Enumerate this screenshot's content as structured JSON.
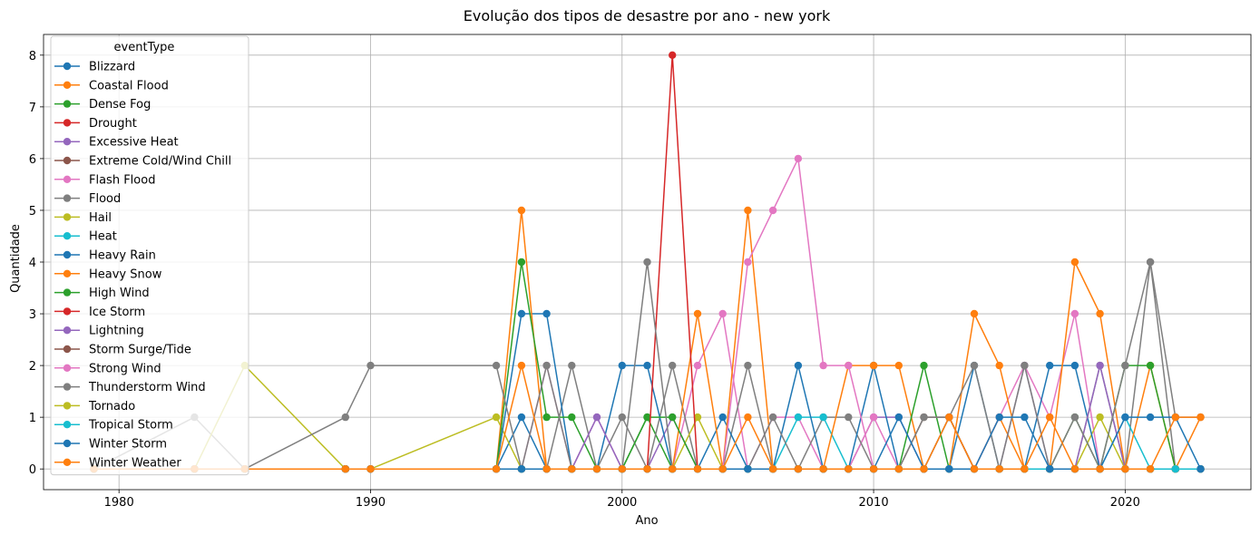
{
  "chart_data": {
    "type": "line",
    "title": "Evolução dos tipos de desastre por ano - new york",
    "xlabel": "Ano",
    "ylabel": "Quantidade",
    "xlim": [
      1977,
      2025
    ],
    "ylim": [
      -0.4,
      8.4
    ],
    "xticks": [
      1980,
      1990,
      2000,
      2010,
      2020
    ],
    "yticks": [
      0,
      1,
      2,
      3,
      4,
      5,
      6,
      7,
      8
    ],
    "grid": true,
    "legend": {
      "title": "eventType",
      "placement": "upper-left"
    },
    "x": [
      1979,
      1983,
      1985,
      1989,
      1990,
      1995,
      1996,
      1997,
      1998,
      1999,
      2000,
      2001,
      2002,
      2003,
      2004,
      2005,
      2006,
      2007,
      2008,
      2009,
      2010,
      2011,
      2012,
      2013,
      2014,
      2015,
      2016,
      2017,
      2018,
      2019,
      2020,
      2021,
      2022,
      2023
    ],
    "series": [
      {
        "name": "Blizzard",
        "color": "#1f77b4",
        "values": [
          0,
          0,
          0,
          0,
          0,
          0,
          1,
          0,
          0,
          0,
          0,
          0,
          0,
          0,
          0,
          0,
          0,
          0,
          0,
          0,
          0,
          0,
          0,
          0,
          0,
          0,
          0,
          0,
          0,
          0,
          0,
          0,
          0,
          0
        ]
      },
      {
        "name": "Coastal Flood",
        "color": "#ff7f0e",
        "values": [
          0,
          0,
          0,
          0,
          0,
          0,
          0,
          0,
          0,
          0,
          0,
          0,
          0,
          0,
          0,
          0,
          0,
          0,
          0,
          0,
          0,
          0,
          0,
          0,
          0,
          1,
          0,
          0,
          0,
          0,
          0,
          0,
          0,
          0
        ]
      },
      {
        "name": "Dense Fog",
        "color": "#2ca02c",
        "values": [
          0,
          0,
          0,
          0,
          0,
          0,
          0,
          0,
          0,
          0,
          0,
          1,
          0,
          0,
          0,
          0,
          0,
          0,
          0,
          0,
          0,
          0,
          0,
          1,
          0,
          0,
          0,
          0,
          0,
          0,
          0,
          0,
          0,
          0
        ]
      },
      {
        "name": "Drought",
        "color": "#d62728",
        "values": [
          0,
          0,
          0,
          0,
          0,
          0,
          0,
          0,
          0,
          0,
          0,
          0,
          0,
          0,
          0,
          0,
          0,
          0,
          0,
          0,
          0,
          0,
          0,
          0,
          0,
          0,
          0,
          0,
          0,
          0,
          0,
          0,
          0,
          0
        ]
      },
      {
        "name": "Excessive Heat",
        "color": "#9467bd",
        "values": [
          0,
          0,
          0,
          0,
          0,
          0,
          0,
          0,
          0,
          0,
          0,
          0,
          1,
          0,
          0,
          0,
          0,
          0,
          0,
          0,
          1,
          1,
          0,
          1,
          0,
          0,
          0,
          0,
          0,
          0,
          0,
          0,
          0,
          0
        ]
      },
      {
        "name": "Extreme Cold/Wind Chill",
        "color": "#8c564b",
        "values": [
          0,
          0,
          0,
          0,
          0,
          0,
          0,
          0,
          0,
          0,
          0,
          0,
          0,
          0,
          0,
          0,
          0,
          0,
          0,
          0,
          0,
          0,
          0,
          0,
          0,
          0,
          0,
          0,
          0,
          0,
          0,
          0,
          0,
          0
        ]
      },
      {
        "name": "Flash Flood",
        "color": "#e377c2",
        "values": [
          0,
          0,
          0,
          0,
          0,
          0,
          0,
          2,
          0,
          1,
          0,
          0,
          0,
          2,
          3,
          0,
          1,
          1,
          0,
          0,
          1,
          0,
          0,
          0,
          0,
          1,
          2,
          1,
          3,
          0,
          0,
          0,
          0,
          0
        ]
      },
      {
        "name": "Flood",
        "color": "#7f7f7f",
        "values": [
          0,
          1,
          0,
          0,
          0,
          0,
          0,
          0,
          2,
          0,
          1,
          0,
          2,
          0,
          0,
          2,
          0,
          0,
          1,
          1,
          0,
          0,
          0,
          0,
          0,
          0,
          0,
          0,
          0,
          2,
          0,
          4,
          0,
          0
        ]
      },
      {
        "name": "Hail",
        "color": "#bcbd22",
        "values": [
          0,
          0,
          2,
          0,
          0,
          1,
          0,
          0,
          0,
          0,
          0,
          0,
          0,
          1,
          0,
          0,
          0,
          0,
          0,
          0,
          0,
          0,
          0,
          0,
          0,
          0,
          0,
          0,
          0,
          1,
          0,
          0,
          0,
          0
        ]
      },
      {
        "name": "Heat",
        "color": "#17becf",
        "values": [
          0,
          0,
          0,
          0,
          0,
          0,
          0,
          0,
          0,
          0,
          0,
          0,
          0,
          0,
          0,
          0,
          0,
          1,
          1,
          0,
          0,
          0,
          0,
          0,
          0,
          0,
          0,
          0,
          0,
          0,
          1,
          0,
          0,
          0
        ]
      },
      {
        "name": "Heavy Rain",
        "color": "#1f77b4",
        "values": [
          0,
          0,
          0,
          0,
          0,
          0,
          3,
          3,
          0,
          0,
          2,
          2,
          0,
          0,
          1,
          0,
          0,
          2,
          0,
          0,
          2,
          0,
          0,
          0,
          2,
          0,
          0,
          2,
          2,
          0,
          0,
          0,
          0,
          0
        ]
      },
      {
        "name": "Heavy Snow",
        "color": "#ff7f0e",
        "values": [
          0,
          0,
          0,
          0,
          0,
          0,
          5,
          0,
          0,
          0,
          0,
          0,
          0,
          3,
          0,
          5,
          0,
          0,
          0,
          2,
          2,
          2,
          0,
          0,
          3,
          2,
          0,
          0,
          4,
          3,
          0,
          2,
          0,
          1
        ]
      },
      {
        "name": "High Wind",
        "color": "#2ca02c",
        "values": [
          0,
          0,
          0,
          0,
          0,
          0,
          4,
          1,
          1,
          0,
          0,
          1,
          1,
          0,
          0,
          0,
          0,
          0,
          0,
          0,
          0,
          0,
          2,
          0,
          0,
          0,
          0,
          0,
          1,
          0,
          2,
          2,
          0,
          0
        ]
      },
      {
        "name": "Ice Storm",
        "color": "#d62728",
        "values": [
          0,
          0,
          0,
          0,
          0,
          0,
          0,
          0,
          0,
          0,
          0,
          0,
          8,
          0,
          0,
          0,
          0,
          0,
          0,
          0,
          0,
          0,
          0,
          0,
          0,
          0,
          0,
          0,
          0,
          0,
          0,
          0,
          0,
          0
        ]
      },
      {
        "name": "Lightning",
        "color": "#9467bd",
        "values": [
          0,
          0,
          0,
          0,
          0,
          0,
          0,
          0,
          0,
          1,
          0,
          0,
          0,
          0,
          0,
          0,
          0,
          0,
          0,
          0,
          0,
          0,
          0,
          0,
          0,
          0,
          2,
          0,
          0,
          2,
          0,
          0,
          0,
          0
        ]
      },
      {
        "name": "Storm Surge/Tide",
        "color": "#8c564b",
        "values": [
          0,
          0,
          0,
          0,
          0,
          0,
          0,
          0,
          0,
          0,
          0,
          0,
          0,
          0,
          0,
          0,
          0,
          0,
          0,
          0,
          0,
          0,
          1,
          1,
          0,
          0,
          0,
          0,
          0,
          0,
          0,
          0,
          0,
          0
        ]
      },
      {
        "name": "Strong Wind",
        "color": "#e377c2",
        "values": [
          0,
          0,
          0,
          0,
          0,
          0,
          0,
          0,
          0,
          0,
          0,
          0,
          0,
          0,
          0,
          4,
          5,
          6,
          2,
          2,
          0,
          0,
          0,
          0,
          0,
          0,
          0,
          0,
          0,
          0,
          0,
          0,
          0,
          0
        ]
      },
      {
        "name": "Thunderstorm Wind",
        "color": "#7f7f7f",
        "values": [
          0,
          0,
          0,
          1,
          2,
          2,
          0,
          2,
          0,
          0,
          0,
          4,
          0,
          0,
          0,
          0,
          1,
          0,
          0,
          0,
          0,
          0,
          1,
          1,
          2,
          0,
          2,
          0,
          1,
          0,
          2,
          4,
          1,
          1
        ]
      },
      {
        "name": "Tornado",
        "color": "#bcbd22",
        "values": [
          0,
          0,
          0,
          0,
          0,
          0,
          0,
          0,
          0,
          0,
          0,
          0,
          0,
          0,
          0,
          0,
          0,
          0,
          0,
          0,
          0,
          0,
          0,
          0,
          0,
          0,
          0,
          0,
          0,
          0,
          0,
          0,
          0,
          0
        ]
      },
      {
        "name": "Tropical Storm",
        "color": "#17becf",
        "values": [
          0,
          0,
          0,
          0,
          0,
          0,
          0,
          0,
          0,
          0,
          0,
          0,
          0,
          0,
          0,
          0,
          0,
          0,
          0,
          0,
          0,
          0,
          0,
          0,
          0,
          0,
          0,
          0,
          0,
          0,
          0,
          0,
          0,
          0
        ]
      },
      {
        "name": "Winter Storm",
        "color": "#1f77b4",
        "values": [
          0,
          0,
          0,
          0,
          0,
          0,
          0,
          0,
          0,
          0,
          0,
          0,
          0,
          0,
          0,
          0,
          0,
          0,
          0,
          0,
          0,
          1,
          0,
          0,
          0,
          1,
          1,
          0,
          0,
          0,
          1,
          1,
          1,
          0
        ]
      },
      {
        "name": "Winter Weather",
        "color": "#ff7f0e",
        "values": [
          0,
          0,
          0,
          0,
          0,
          0,
          2,
          0,
          0,
          0,
          0,
          0,
          0,
          0,
          0,
          1,
          0,
          0,
          0,
          0,
          0,
          0,
          0,
          1,
          0,
          0,
          0,
          1,
          0,
          0,
          0,
          0,
          1,
          1
        ]
      }
    ]
  }
}
